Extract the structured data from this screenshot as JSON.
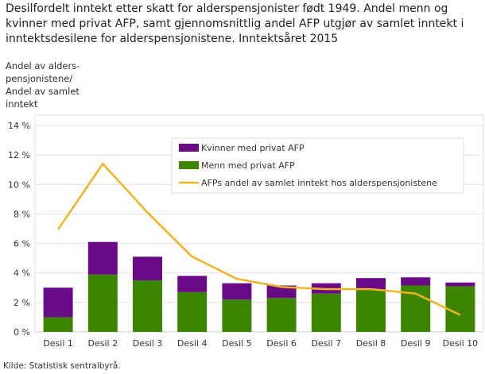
{
  "title": "Desilfordelt inntekt etter skatt for alderspensjonister født 1949. Andel menn og kvinner med privat AFP, samt gjennomsnittlig andel AFP utgjør av samlet inntekt i inntektsdesilene for alderspensjonistene. Inntektsåret 2015",
  "source": "Kilde: Statistisk sentralbyrå.",
  "chart_data": {
    "type": "bar",
    "stacked": true,
    "title": "Desilfordelt inntekt etter skatt for alderspensjonister født 1949. Andel menn og kvinner med privat AFP, samt gjennomsnittlig andel AFP utgjør av samlet inntekt i inntektsdesilene for alderspensjonistene. Inntektsåret 2015",
    "ylabel": "Andel av alders-pensjonistene/ Andel av samlet inntekt",
    "xlabel": "",
    "ylim": [
      0,
      14
    ],
    "yticks": [
      "0 %",
      "2 %",
      "4 %",
      "6 %",
      "8 %",
      "10 %",
      "12 %",
      "14 %"
    ],
    "grid": true,
    "legend_position": "top-right",
    "categories": [
      "Desil 1",
      "Desil 2",
      "Desil 3",
      "Desil 4",
      "Desil 5",
      "Desil 6",
      "Desil 7",
      "Desil 8",
      "Desil 9",
      "Desil 10"
    ],
    "series": [
      {
        "name": "Menn med privat AFP",
        "type": "bar",
        "color": "#3d8500",
        "values": [
          1.0,
          3.9,
          3.5,
          2.7,
          2.2,
          2.3,
          2.6,
          2.9,
          3.15,
          3.1
        ]
      },
      {
        "name": "Kvinner med privat AFP",
        "type": "bar",
        "color": "#690a86",
        "values": [
          2.0,
          2.2,
          1.6,
          1.1,
          1.1,
          0.85,
          0.7,
          0.75,
          0.55,
          0.25
        ]
      },
      {
        "name": "AFPs andel av samlet inntekt hos alderspensjonistene",
        "type": "line",
        "color": "#f0b323",
        "values": [
          6.95,
          11.4,
          8.1,
          5.1,
          3.6,
          3.05,
          2.9,
          2.9,
          2.6,
          1.15
        ]
      }
    ],
    "legend_order": [
      "Kvinner med privat AFP",
      "Menn med privat AFP",
      "AFPs andel av samlet inntekt hos alderspensjonistene"
    ]
  }
}
